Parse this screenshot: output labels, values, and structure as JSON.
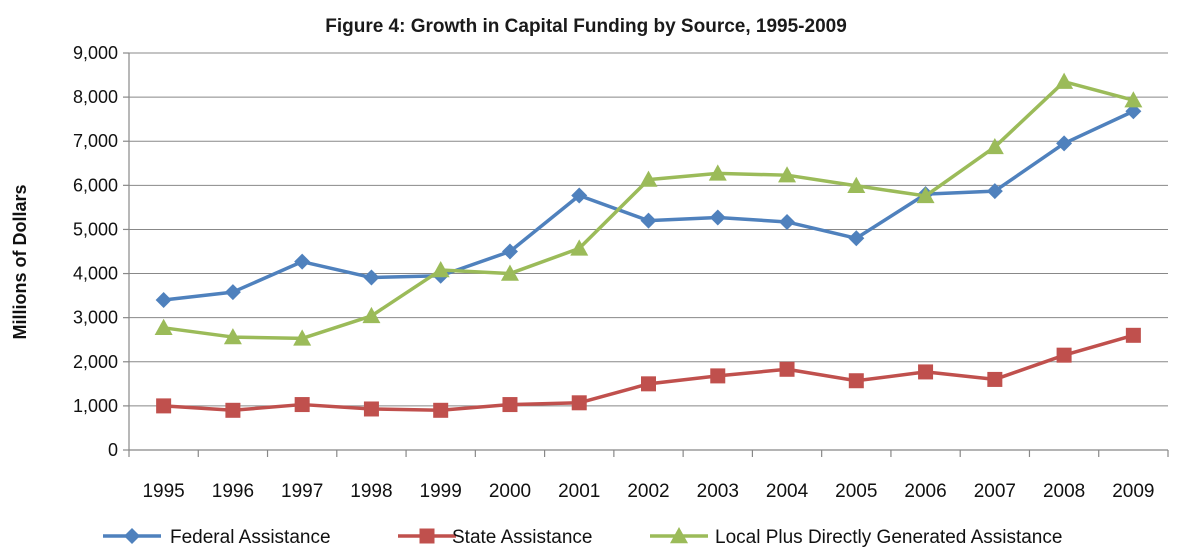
{
  "chart_data": {
    "type": "line",
    "title": "Figure 4: Growth in Capital Funding by Source, 1995-2009",
    "xlabel": "",
    "ylabel": "Millions of Dollars",
    "categories": [
      "1995",
      "1996",
      "1997",
      "1998",
      "1999",
      "2000",
      "2001",
      "2002",
      "2003",
      "2004",
      "2005",
      "2006",
      "2007",
      "2008",
      "2009"
    ],
    "ylim": [
      0,
      9000
    ],
    "yticks": [
      0,
      1000,
      2000,
      3000,
      4000,
      5000,
      6000,
      7000,
      8000,
      9000
    ],
    "ytick_labels": [
      "0",
      "1,000",
      "2,000",
      "3,000",
      "4,000",
      "5,000",
      "6,000",
      "7,000",
      "8,000",
      "9,000"
    ],
    "grid": true,
    "legend_position": "bottom",
    "series": [
      {
        "name": "Federal Assistance",
        "color": "#4F81BD",
        "marker": "diamond",
        "values": [
          3400,
          3580,
          4270,
          3910,
          3950,
          4500,
          5770,
          5200,
          5270,
          5170,
          4800,
          5800,
          5870,
          6950,
          7680
        ]
      },
      {
        "name": "State Assistance",
        "color": "#C0504D",
        "marker": "square",
        "values": [
          1000,
          900,
          1030,
          930,
          900,
          1030,
          1070,
          1500,
          1680,
          1830,
          1570,
          1770,
          1600,
          2150,
          2600
        ]
      },
      {
        "name": "Local Plus Directly Generated Assistance",
        "color": "#9BBB59",
        "marker": "triangle",
        "values": [
          2770,
          2560,
          2530,
          3040,
          4080,
          4000,
          4570,
          6130,
          6270,
          6230,
          5990,
          5760,
          6870,
          8350,
          7930
        ]
      }
    ]
  }
}
